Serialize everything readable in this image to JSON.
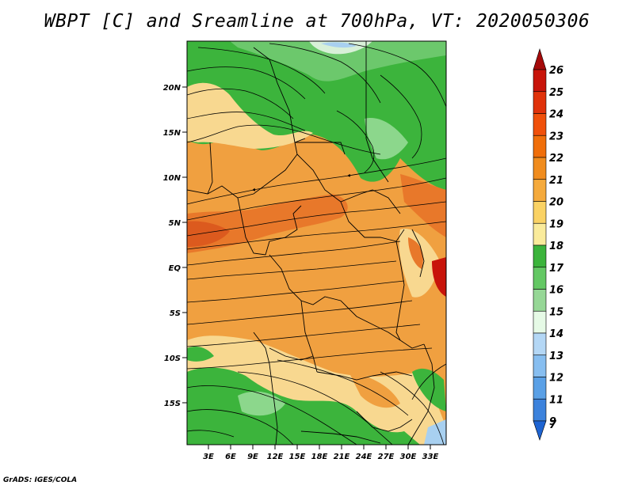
{
  "title": "WBPT [C] and Sreamline at 700hPa, VT: 2020050306",
  "credit": "GrADS: IGES/COLA",
  "map": {
    "lat_labels": [
      "20N",
      "15N",
      "10N",
      "5N",
      "EQ",
      "5S",
      "10S",
      "15S"
    ],
    "lon_labels": [
      "3E",
      "6E",
      "9E",
      "12E",
      "15E",
      "18E",
      "21E",
      "24E",
      "27E",
      "30E",
      "33E"
    ]
  },
  "colorbar": {
    "levels": [
      "26",
      "25",
      "24",
      "23",
      "22",
      "21",
      "20",
      "19",
      "18",
      "17",
      "16",
      "15",
      "14",
      "13",
      "12",
      "11",
      "9",
      "7"
    ],
    "colors": [
      "#a50a0a",
      "#c8140a",
      "#e0320a",
      "#f0500a",
      "#f06e0a",
      "#f08c1e",
      "#f5aa3c",
      "#fad264",
      "#faeb9b",
      "#3cb43c",
      "#64c864",
      "#96d796",
      "#e6fae6",
      "#b4d7f5",
      "#87bef0",
      "#5aa0e6",
      "#3c82dc",
      "#1e64d2"
    ]
  },
  "colors": {
    "orange": "#f0a040",
    "deep_orange": "#e8782a",
    "tan": "#f8d890",
    "green": "#3cb43c",
    "light_green": "#8cd78c",
    "stream": "#000000"
  }
}
